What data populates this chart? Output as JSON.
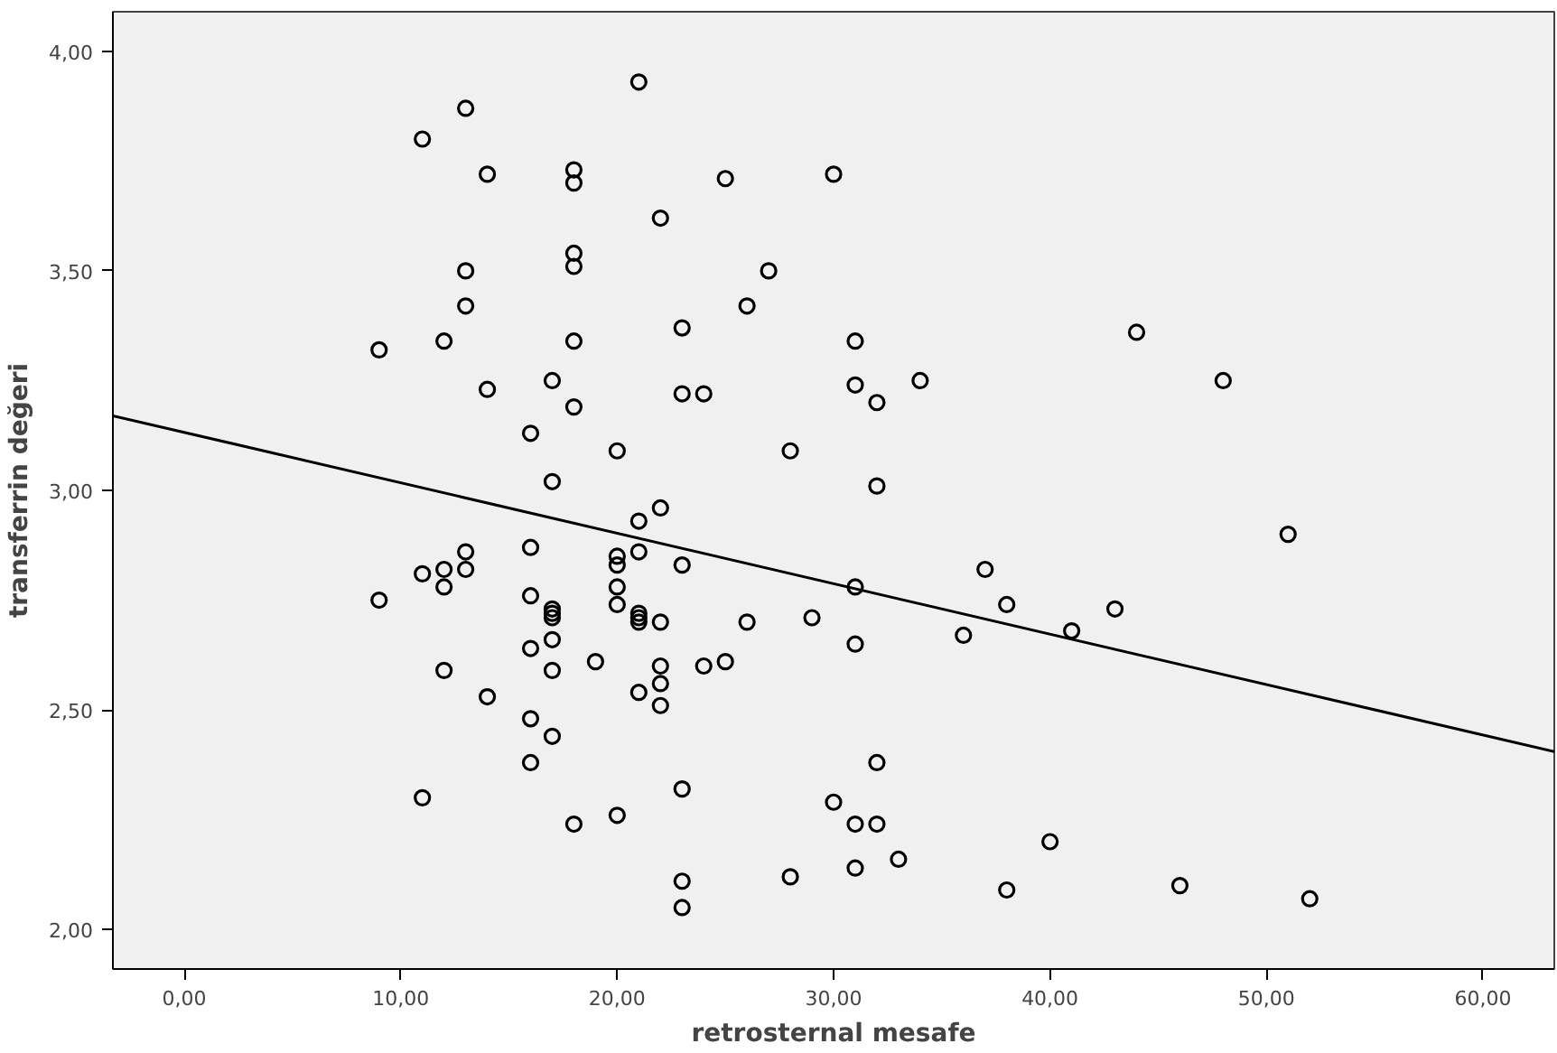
{
  "chart_data": {
    "type": "scatter",
    "xlabel": "retrosternal mesafe",
    "ylabel": "transferrin değeri",
    "xlim": [
      -3.3,
      63.3
    ],
    "ylim": [
      1.91,
      4.09
    ],
    "xticks": [
      {
        "value": 0,
        "label": "0,00"
      },
      {
        "value": 10,
        "label": "10,00"
      },
      {
        "value": 20,
        "label": "20,00"
      },
      {
        "value": 30,
        "label": "30,00"
      },
      {
        "value": 40,
        "label": "40,00"
      },
      {
        "value": 50,
        "label": "50,00"
      },
      {
        "value": 60,
        "label": "60,00"
      }
    ],
    "yticks": [
      {
        "value": 2,
        "label": "2,00"
      },
      {
        "value": 2.5,
        "label": "2,50"
      },
      {
        "value": 3,
        "label": "3,00"
      },
      {
        "value": 3.5,
        "label": "3,50"
      },
      {
        "value": 4,
        "label": "4,00"
      }
    ],
    "grid": false,
    "series": [
      {
        "color": "#000000",
        "marker": "circle",
        "x": [
          9,
          9,
          11,
          11,
          11,
          12,
          12,
          12,
          12,
          13,
          13,
          13,
          13,
          13,
          14,
          14,
          14,
          16,
          16,
          16,
          16,
          16,
          16,
          17,
          17,
          17,
          17,
          17,
          17,
          17,
          17,
          18,
          18,
          18,
          18,
          18,
          18,
          18,
          19,
          20,
          20,
          20,
          20,
          20,
          20,
          21,
          21,
          21,
          21,
          21,
          21,
          21,
          22,
          22,
          22,
          22,
          22,
          22,
          23,
          23,
          23,
          23,
          23,
          23,
          24,
          24,
          25,
          25,
          26,
          26,
          27,
          28,
          28,
          29,
          30,
          30,
          31,
          31,
          31,
          31,
          31,
          31,
          32,
          32,
          32,
          32,
          33,
          34,
          36,
          37,
          38,
          38,
          40,
          41,
          43,
          44,
          46,
          48,
          51,
          52
        ],
        "values": [
          3.32,
          2.75,
          3.8,
          2.81,
          2.3,
          3.34,
          2.82,
          2.78,
          2.59,
          3.87,
          3.5,
          3.42,
          2.86,
          2.82,
          3.72,
          3.23,
          2.53,
          3.13,
          2.87,
          2.76,
          2.64,
          2.48,
          2.38,
          3.25,
          3.02,
          2.73,
          2.72,
          2.71,
          2.66,
          2.59,
          2.44,
          3.73,
          3.7,
          3.54,
          3.51,
          3.34,
          3.19,
          2.24,
          2.61,
          3.09,
          2.85,
          2.83,
          2.78,
          2.74,
          2.26,
          3.93,
          2.93,
          2.86,
          2.72,
          2.71,
          2.7,
          2.54,
          3.62,
          2.96,
          2.7,
          2.6,
          2.56,
          2.51,
          3.37,
          3.22,
          2.83,
          2.32,
          2.11,
          2.05,
          3.22,
          2.6,
          3.71,
          2.61,
          3.42,
          2.7,
          3.5,
          3.09,
          2.12,
          2.71,
          3.72,
          2.29,
          3.34,
          3.24,
          2.78,
          2.65,
          2.24,
          2.14,
          3.2,
          3.01,
          2.38,
          2.24,
          2.16,
          3.25,
          2.67,
          2.82,
          2.74,
          2.09,
          2.2,
          2.68,
          2.73,
          3.36,
          2.1,
          3.25,
          2.9,
          2.07
        ]
      },
      {
        "type": "line",
        "color": "#000000",
        "line_style": "solid",
        "x": [
          -3.3,
          63.3
        ],
        "values": [
          3.17,
          2.405
        ]
      }
    ]
  }
}
